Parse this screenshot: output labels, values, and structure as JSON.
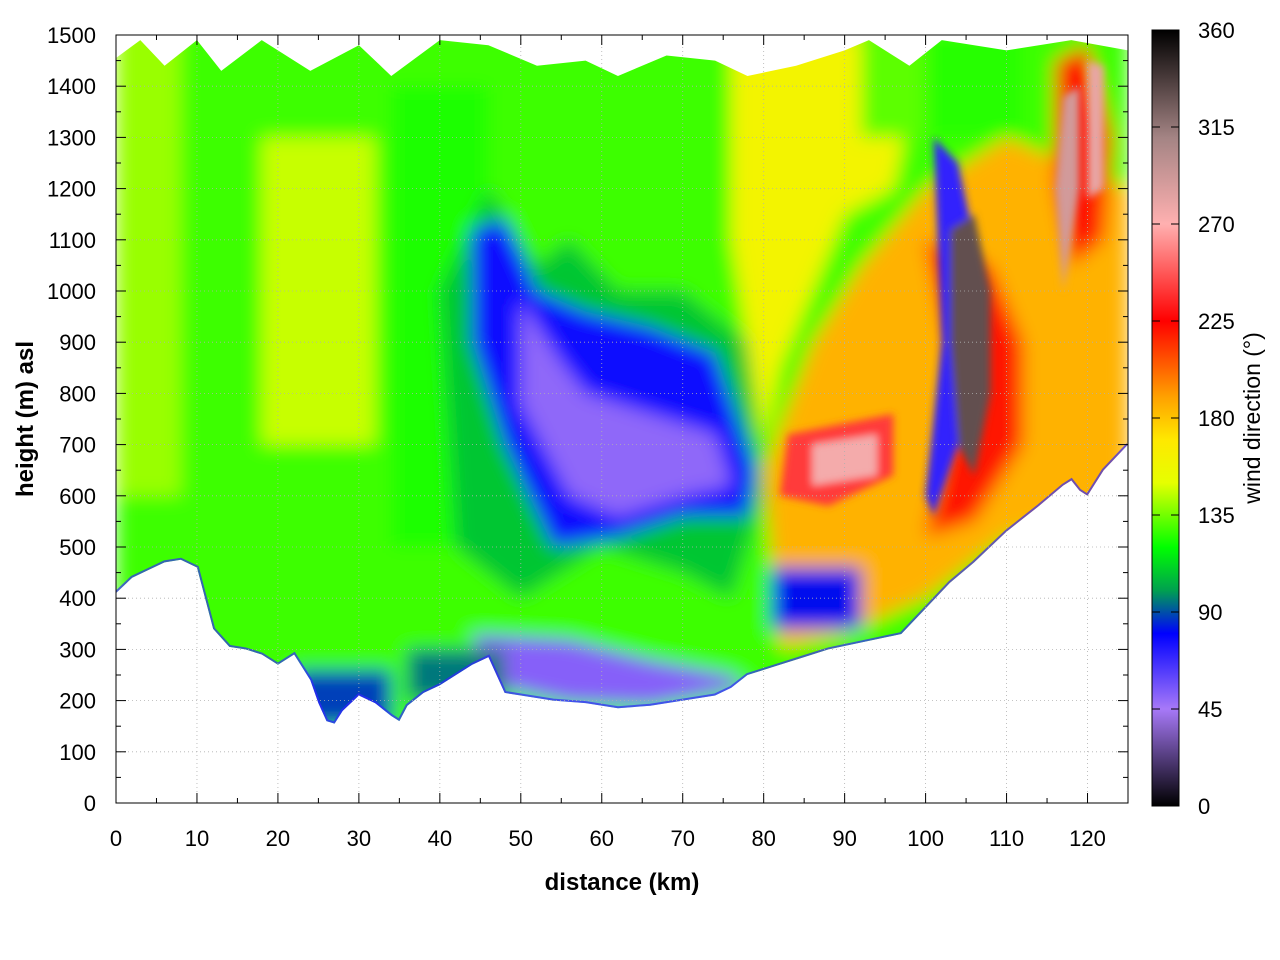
{
  "chart_data": {
    "type": "heatmap",
    "title": "",
    "xlabel": "distance (km)",
    "ylabel": "height (m) asl",
    "xlim": [
      0,
      125
    ],
    "ylim": [
      0,
      1500
    ],
    "x_ticks": [
      "0",
      "10",
      "20",
      "30",
      "40",
      "50",
      "60",
      "70",
      "80",
      "90",
      "100",
      "110",
      "120"
    ],
    "y_ticks": [
      "0",
      "100",
      "200",
      "300",
      "400",
      "500",
      "600",
      "700",
      "800",
      "900",
      "1000",
      "1100",
      "1200",
      "1300",
      "1400",
      "1500"
    ],
    "grid": true,
    "colorbar": {
      "label": "wind direction (°)",
      "range": [
        0,
        360
      ],
      "ticks": [
        "0",
        "45",
        "90",
        "135",
        "180",
        "225",
        "270",
        "315",
        "360"
      ],
      "stops": [
        {
          "value": 0,
          "color": "#000000"
        },
        {
          "value": 45,
          "color": "#a779f8"
        },
        {
          "value": 80,
          "color": "#0000ff"
        },
        {
          "value": 100,
          "color": "#00a050"
        },
        {
          "value": 120,
          "color": "#00ff00"
        },
        {
          "value": 150,
          "color": "#e6ff00"
        },
        {
          "value": 170,
          "color": "#ffe800"
        },
        {
          "value": 190,
          "color": "#ffa000"
        },
        {
          "value": 225,
          "color": "#ff0000"
        },
        {
          "value": 270,
          "color": "#ffb0b0"
        },
        {
          "value": 310,
          "color": "#a48484"
        },
        {
          "value": 360,
          "color": "#000000"
        }
      ]
    },
    "terrain": {
      "x": [
        0,
        2,
        4,
        6,
        8,
        10,
        11,
        12,
        14,
        16,
        18,
        20,
        22,
        24,
        25,
        26,
        27,
        28,
        30,
        32,
        34,
        35,
        36,
        38,
        40,
        42,
        44,
        46,
        47,
        48,
        50,
        54,
        58,
        62,
        66,
        70,
        74,
        76,
        78,
        80,
        82,
        85,
        88,
        91,
        94,
        97,
        100,
        103,
        106,
        110,
        114,
        117,
        118,
        119,
        120,
        122,
        125
      ],
      "height": [
        410,
        440,
        455,
        470,
        475,
        460,
        400,
        340,
        305,
        300,
        290,
        270,
        290,
        240,
        195,
        160,
        155,
        180,
        210,
        195,
        170,
        160,
        190,
        215,
        230,
        250,
        270,
        285,
        250,
        215,
        210,
        200,
        195,
        185,
        190,
        200,
        210,
        225,
        250,
        260,
        270,
        285,
        300,
        310,
        320,
        330,
        380,
        430,
        470,
        530,
        580,
        620,
        630,
        610,
        600,
        650,
        700
      ]
    },
    "regions": [
      {
        "label": "green-yellow band",
        "x": [
          0,
          45
        ],
        "height": [
          450,
          1450
        ],
        "direction": 135
      },
      {
        "label": "blue-purple easterly core",
        "x": [
          45,
          77
        ],
        "height": [
          200,
          1100
        ],
        "direction": 60
      },
      {
        "label": "yellow-orange southerly",
        "x": [
          77,
          125
        ],
        "height": [
          300,
          1450
        ],
        "direction": 180
      },
      {
        "label": "red-pink patch",
        "x": [
          86,
          97
        ],
        "height": [
          520,
          700
        ],
        "direction": 250
      },
      {
        "label": "dark core",
        "x": [
          103,
          108
        ],
        "height": [
          600,
          1150
        ],
        "direction": 330
      }
    ]
  }
}
